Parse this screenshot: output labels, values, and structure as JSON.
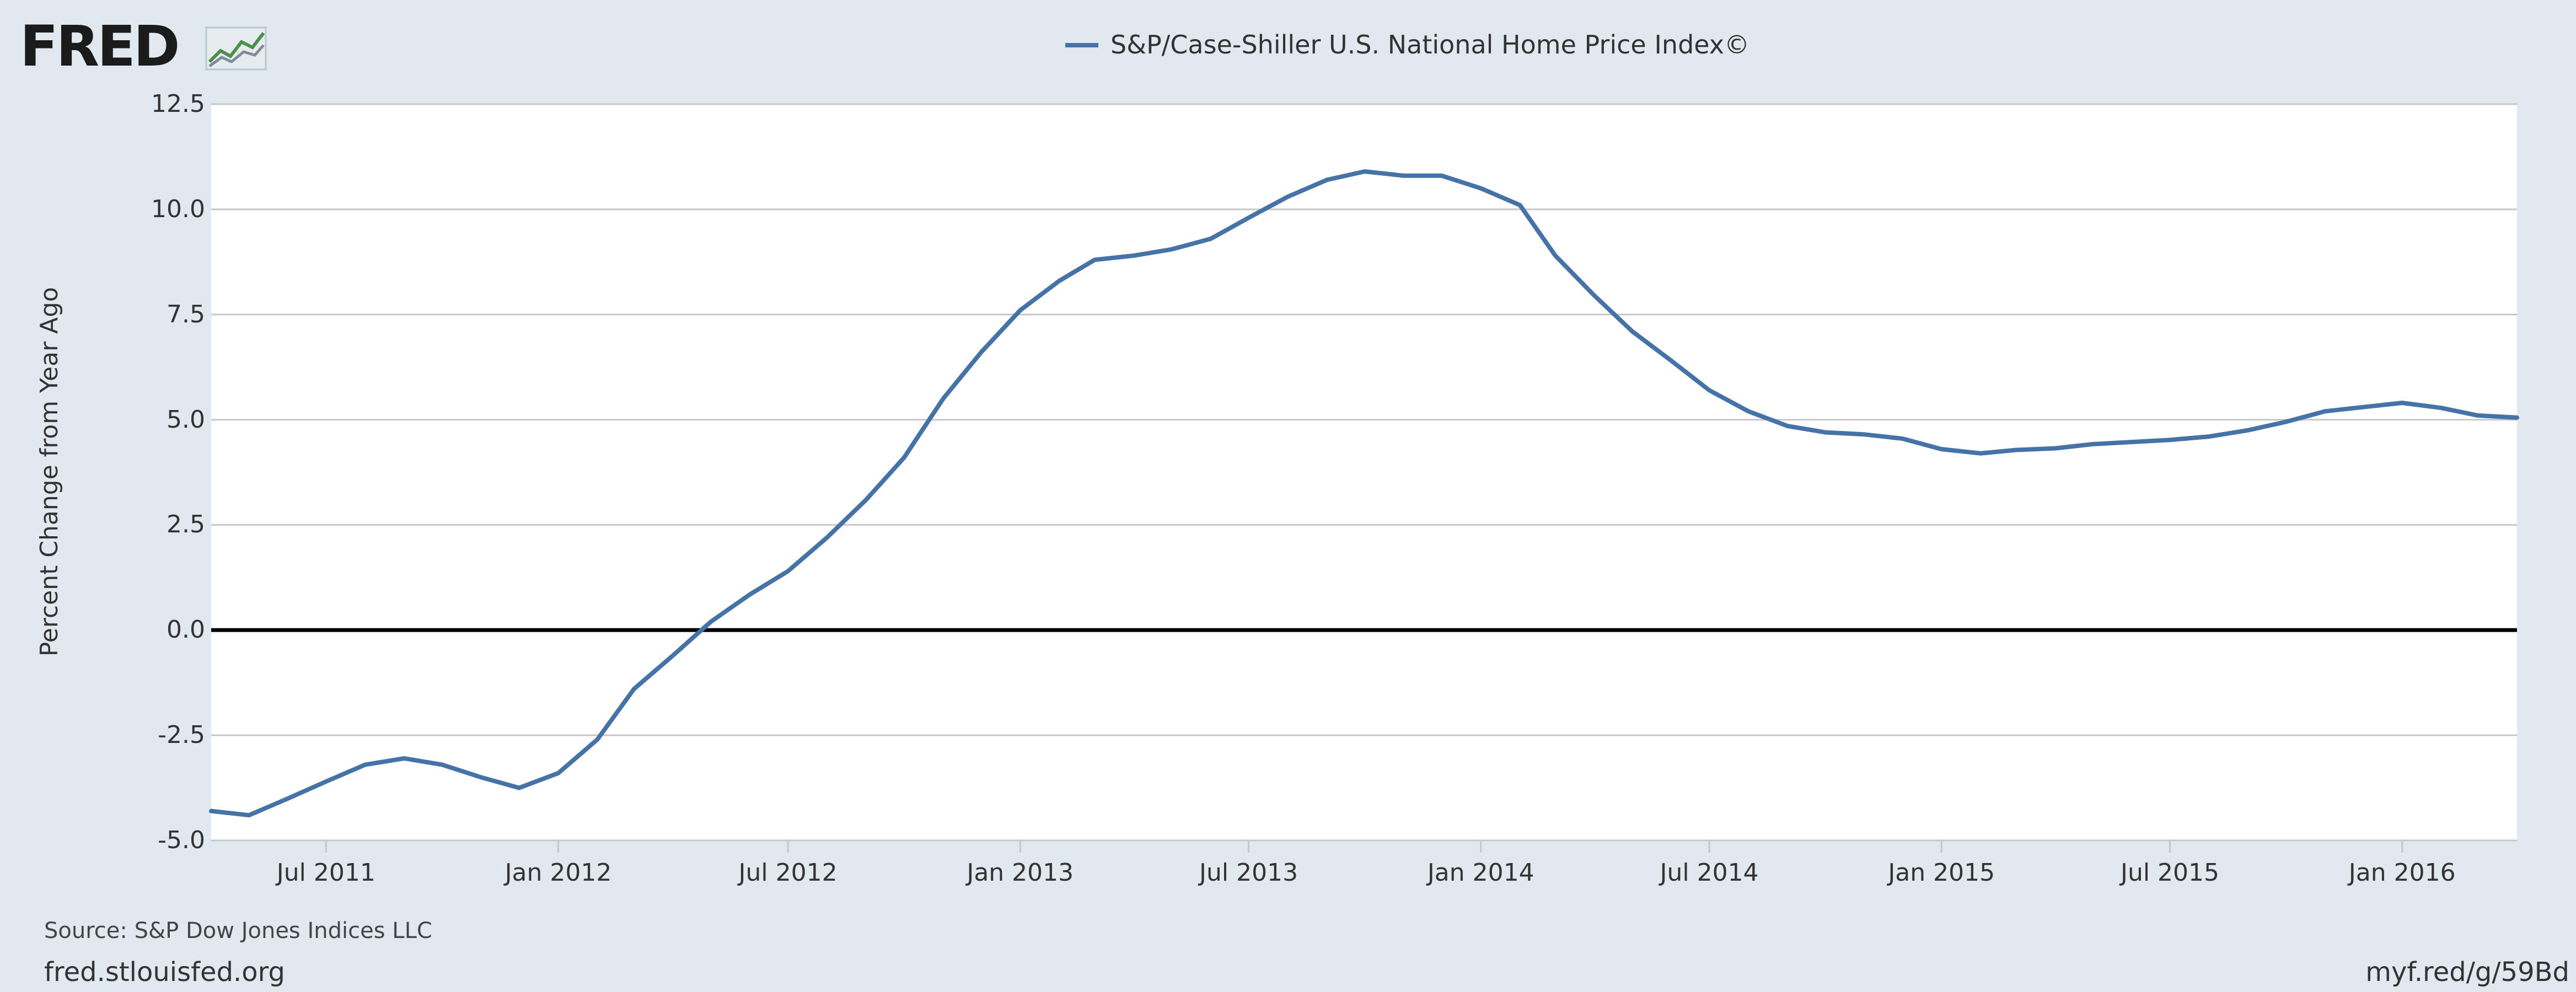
{
  "logo": {
    "text": "FRED",
    "icon": "fred-chart-logo-icon"
  },
  "chart_data": {
    "type": "line",
    "title": "",
    "xlabel": "",
    "ylabel": "Percent Change from Year Ago",
    "legend_position": "top-center",
    "grid": true,
    "ylim": [
      -5.0,
      12.5
    ],
    "xlim": [
      "2011-04-01",
      "2016-04-01"
    ],
    "yticks": [
      "12.5",
      "10.0",
      "7.5",
      "5.0",
      "2.5",
      "0.0",
      "-2.5",
      "-5.0"
    ],
    "xticks": [
      "Jul 2011",
      "Jan 2012",
      "Jul 2012",
      "Jan 2013",
      "Jul 2013",
      "Jan 2014",
      "Jul 2014",
      "Jan 2015",
      "Jul 2015",
      "Jan 2016"
    ],
    "x": [
      "2011-04-01",
      "2011-05-01",
      "2011-06-01",
      "2011-07-01",
      "2011-08-01",
      "2011-09-01",
      "2011-10-01",
      "2011-11-01",
      "2011-12-01",
      "2012-01-01",
      "2012-02-01",
      "2012-03-01",
      "2012-04-01",
      "2012-05-01",
      "2012-06-01",
      "2012-07-01",
      "2012-08-01",
      "2012-09-01",
      "2012-10-01",
      "2012-11-01",
      "2012-12-01",
      "2013-01-01",
      "2013-02-01",
      "2013-03-01",
      "2013-04-01",
      "2013-05-01",
      "2013-06-01",
      "2013-07-01",
      "2013-08-01",
      "2013-09-01",
      "2013-10-01",
      "2013-11-01",
      "2013-12-01",
      "2014-01-01",
      "2014-02-01",
      "2014-03-01",
      "2014-04-01",
      "2014-05-01",
      "2014-06-01",
      "2014-07-01",
      "2014-08-01",
      "2014-09-01",
      "2014-10-01",
      "2014-11-01",
      "2014-12-01",
      "2015-01-01",
      "2015-02-01",
      "2015-03-01",
      "2015-04-01",
      "2015-05-01",
      "2015-06-01",
      "2015-07-01",
      "2015-08-01",
      "2015-09-01",
      "2015-10-01",
      "2015-11-01",
      "2015-12-01",
      "2016-01-01",
      "2016-02-01",
      "2016-03-01",
      "2016-04-01"
    ],
    "series": [
      {
        "name": "S&P/Case-Shiller U.S. National Home Price Index©",
        "color": "#4572a7",
        "values": [
          -4.3,
          -4.4,
          -4.0,
          -3.6,
          -3.2,
          -3.05,
          -3.2,
          -3.5,
          -3.75,
          -3.4,
          -2.6,
          -1.4,
          -0.6,
          0.2,
          0.85,
          1.4,
          2.2,
          3.1,
          4.1,
          5.5,
          6.6,
          7.6,
          8.3,
          8.8,
          8.9,
          9.05,
          9.3,
          9.8,
          10.3,
          10.7,
          10.9,
          10.8,
          10.8,
          10.5,
          10.1,
          8.9,
          7.95,
          7.1,
          6.4,
          5.7,
          5.2,
          4.85,
          4.7,
          4.65,
          4.55,
          4.3,
          4.2,
          4.28,
          4.32,
          4.42,
          4.47,
          4.52,
          4.6,
          4.75,
          4.95,
          5.2,
          5.3,
          5.4,
          5.28,
          5.1,
          5.05
        ]
      }
    ],
    "zero_line_color": "#000000",
    "grid_color": "#c8c8c8",
    "plot_background": "#ffffff"
  },
  "footer": {
    "source": "Source: S&P Dow Jones Indices LLC",
    "site": "fred.stlouisfed.org",
    "short_link": "myf.red/g/59Bd"
  },
  "colors": {
    "background": "#e1e9f0",
    "line": "#4572a7"
  }
}
